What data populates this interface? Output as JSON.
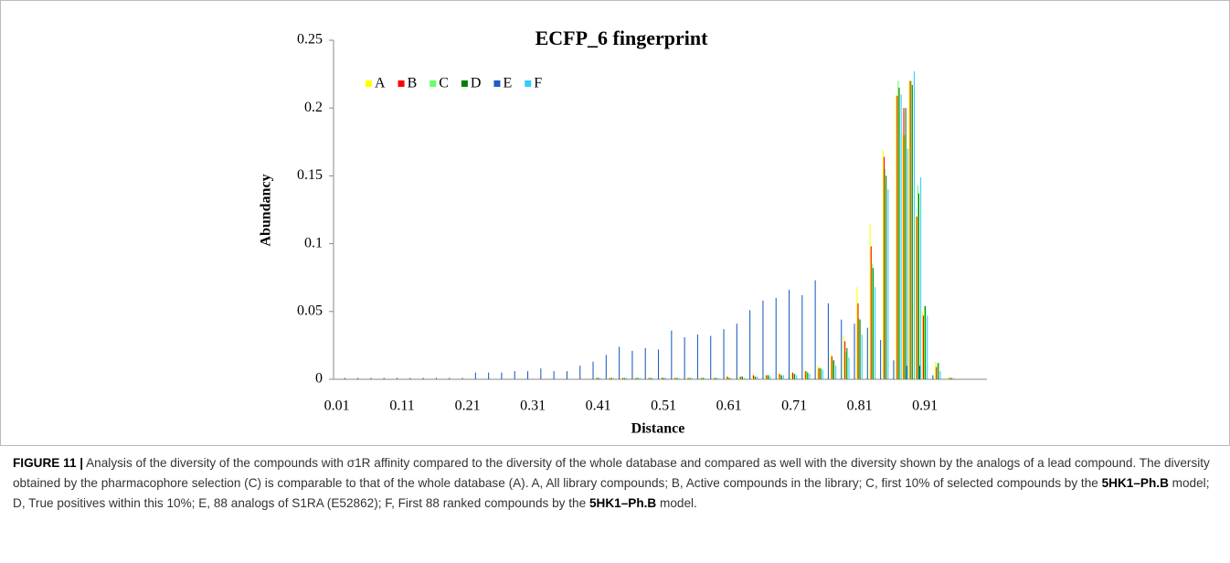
{
  "chart_data": {
    "type": "bar",
    "title": "ECFP_6  fingerprint",
    "x_label": "Distance",
    "y_label": "Abundancy",
    "categories": [
      "0.01",
      null,
      null,
      null,
      null,
      null,
      null,
      null,
      null,
      null,
      "0.11",
      null,
      null,
      null,
      null,
      null,
      null,
      null,
      null,
      null,
      "0.21",
      null,
      null,
      null,
      null,
      null,
      null,
      null,
      null,
      null,
      "0.31",
      null,
      null,
      null,
      null,
      null,
      null,
      null,
      null,
      null,
      "0.41",
      null,
      null,
      null,
      null,
      null,
      null,
      null,
      null,
      null,
      "0.51",
      null,
      null,
      null,
      null,
      null,
      null,
      null,
      null,
      null,
      "0.61",
      null,
      null,
      null,
      null,
      null,
      null,
      null,
      null,
      null,
      "0.71",
      null,
      null,
      null,
      null,
      null,
      null,
      null,
      null,
      null,
      "0.81",
      null,
      null,
      null,
      null,
      null,
      null,
      null,
      null,
      null,
      "0.91",
      null,
      null,
      null,
      null,
      null,
      null,
      null,
      null,
      null
    ],
    "series": [
      {
        "name": "A",
        "color": "#ffff00",
        "values": [
          0,
          0,
          0,
          0,
          0,
          0,
          0,
          0,
          0,
          0,
          0,
          0,
          0,
          0,
          0,
          0,
          0,
          0,
          0,
          0,
          0,
          0,
          0,
          0,
          0,
          0,
          0,
          0,
          0,
          0,
          0,
          0,
          0,
          0,
          0,
          0,
          0,
          0,
          0,
          0,
          0.001,
          0,
          0.001,
          0,
          0.001,
          0,
          0.001,
          0,
          0.001,
          0,
          0.001,
          0,
          0.001,
          0,
          0.001,
          0,
          0.001,
          0,
          0.001,
          0,
          0.002,
          0,
          0.002,
          0,
          0.003,
          0,
          0.003,
          0,
          0.004,
          0,
          0.004,
          0,
          0.006,
          0,
          0.01,
          0,
          0.018,
          0,
          0.032,
          0,
          0.068,
          0,
          0.114,
          0,
          0.169,
          0,
          0.21,
          0.18,
          0.22,
          0.12,
          0.05,
          0,
          0.013,
          0,
          0.002,
          0,
          0,
          0,
          0,
          0
        ]
      },
      {
        "name": "B",
        "color": "#ff0000",
        "values": [
          0,
          0,
          0,
          0,
          0,
          0,
          0,
          0,
          0,
          0,
          0,
          0,
          0,
          0,
          0,
          0,
          0,
          0,
          0,
          0,
          0,
          0,
          0,
          0,
          0,
          0,
          0,
          0,
          0,
          0,
          0,
          0,
          0,
          0,
          0,
          0,
          0,
          0,
          0,
          0,
          0.001,
          0,
          0.001,
          0,
          0.001,
          0,
          0.001,
          0,
          0.001,
          0,
          0.001,
          0,
          0.001,
          0,
          0.001,
          0,
          0.001,
          0,
          0.001,
          0,
          0.002,
          0,
          0.002,
          0,
          0.003,
          0,
          0.003,
          0,
          0.004,
          0,
          0.005,
          0,
          0.006,
          0,
          0.008,
          0,
          0.017,
          0,
          0.028,
          0,
          0.056,
          0,
          0.098,
          0,
          0.164,
          0,
          0.209,
          0.2,
          0.22,
          0.12,
          0.047,
          0,
          0.009,
          0,
          0.001,
          0,
          0,
          0,
          0,
          0
        ]
      },
      {
        "name": "C",
        "color": "#66ff66",
        "values": [
          0,
          0,
          0,
          0,
          0,
          0,
          0,
          0,
          0,
          0,
          0,
          0,
          0,
          0,
          0,
          0,
          0,
          0,
          0,
          0,
          0,
          0,
          0,
          0,
          0,
          0,
          0,
          0,
          0,
          0,
          0,
          0,
          0,
          0,
          0,
          0,
          0,
          0,
          0,
          0,
          0.001,
          0,
          0.001,
          0,
          0.001,
          0,
          0.001,
          0,
          0.001,
          0,
          0.001,
          0,
          0.001,
          0,
          0.001,
          0,
          0.001,
          0,
          0.001,
          0,
          0.001,
          0,
          0.002,
          0,
          0.002,
          0,
          0.003,
          0,
          0.003,
          0,
          0.004,
          0,
          0.006,
          0,
          0.009,
          0,
          0.014,
          0,
          0.02,
          0,
          0.045,
          0,
          0.085,
          0,
          0.155,
          0,
          0.22,
          0.18,
          0.22,
          0.143,
          0.054,
          0,
          0.012,
          0,
          0.001,
          0,
          0,
          0,
          0,
          0
        ]
      },
      {
        "name": "D",
        "color": "#008000",
        "values": [
          0,
          0,
          0,
          0,
          0,
          0,
          0,
          0,
          0,
          0,
          0,
          0,
          0,
          0,
          0,
          0,
          0,
          0,
          0,
          0,
          0,
          0,
          0,
          0,
          0,
          0,
          0,
          0,
          0,
          0,
          0,
          0,
          0,
          0,
          0,
          0,
          0,
          0,
          0,
          0,
          0.001,
          0,
          0.001,
          0,
          0.001,
          0,
          0.001,
          0,
          0.001,
          0,
          0.001,
          0,
          0.001,
          0,
          0.001,
          0,
          0.001,
          0,
          0.001,
          0,
          0.001,
          0,
          0.002,
          0,
          0.002,
          0,
          0.003,
          0,
          0.003,
          0,
          0.004,
          0,
          0.005,
          0,
          0.008,
          0,
          0.014,
          0,
          0.023,
          0,
          0.044,
          0,
          0.082,
          0,
          0.15,
          0,
          0.215,
          0.2,
          0.217,
          0.137,
          0.054,
          0,
          0.012,
          0,
          0.001,
          0,
          0,
          0,
          0,
          0
        ]
      },
      {
        "name": "E",
        "color": "#1f5fbf",
        "values": [
          0,
          0.001,
          0,
          0.001,
          0,
          0.001,
          0,
          0.001,
          0,
          0.001,
          0,
          0.001,
          0,
          0.001,
          0,
          0.001,
          0,
          0.001,
          0,
          0.001,
          0,
          0.005,
          0,
          0.005,
          0,
          0.005,
          0,
          0.006,
          0,
          0.006,
          0,
          0.008,
          0,
          0.006,
          0,
          0.006,
          0,
          0.01,
          0,
          0.013,
          0,
          0.018,
          0,
          0.024,
          0,
          0.021,
          0,
          0.023,
          0,
          0.022,
          0,
          0.036,
          0,
          0.031,
          0,
          0.033,
          0,
          0.032,
          0,
          0.037,
          0,
          0.041,
          0,
          0.051,
          0,
          0.058,
          0,
          0.06,
          0,
          0.066,
          0,
          0.062,
          0,
          0.073,
          0,
          0.056,
          0,
          0.044,
          0,
          0.041,
          0,
          0.038,
          0,
          0.029,
          0,
          0.014,
          0,
          0.01,
          0,
          0.01,
          0,
          0.003,
          0,
          0,
          0,
          0,
          0,
          0,
          0,
          0
        ]
      },
      {
        "name": "F",
        "color": "#33ccff",
        "values": [
          0,
          0,
          0,
          0,
          0,
          0,
          0,
          0,
          0,
          0,
          0,
          0,
          0,
          0,
          0,
          0,
          0,
          0,
          0,
          0,
          0,
          0,
          0,
          0,
          0,
          0,
          0,
          0,
          0,
          0,
          0,
          0,
          0,
          0,
          0,
          0,
          0,
          0,
          0,
          0,
          0.001,
          0,
          0.001,
          0,
          0.001,
          0,
          0.001,
          0,
          0.001,
          0,
          0.001,
          0,
          0.001,
          0,
          0.001,
          0,
          0.001,
          0,
          0.001,
          0,
          0.001,
          0,
          0.001,
          0,
          0.002,
          0,
          0.002,
          0,
          0.003,
          0,
          0.003,
          0,
          0.004,
          0,
          0.007,
          0,
          0.01,
          0,
          0.016,
          0,
          0.033,
          0,
          0.068,
          0,
          0.14,
          0,
          0.21,
          0.17,
          0.227,
          0.149,
          0.047,
          0,
          0.006,
          0,
          0.001,
          0,
          0,
          0,
          0,
          0
        ]
      }
    ],
    "ylim": [
      0,
      0.25
    ],
    "yticks": [
      0,
      0.05,
      0.1,
      0.15,
      0.2,
      0.25
    ],
    "grid": false,
    "legend": "top-left"
  },
  "caption": {
    "label": "FIGURE 11 |",
    "parts": [
      " Analysis of the diversity of the compounds with σ1R affinity compared to the diversity of the whole database and compared as well with the diversity shown by the analogs of a lead compound. The diversity obtained by the pharmacophore selection (C) is comparable to that of the whole database (A). A, All library compounds; B, Active compounds in the library; C, first 10% of selected compounds by the ",
      "5HK1–Ph.B",
      " model; D, True positives within this 10%; E, 88 analogs of S1RA (E52862); F, First 88 ranked compounds by the ",
      "5HK1–Ph.B",
      " model."
    ]
  }
}
